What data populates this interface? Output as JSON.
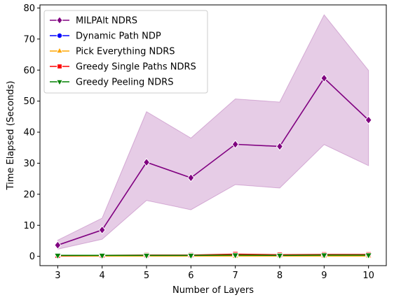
{
  "chart_data": {
    "type": "line",
    "xlabel": "Number of Layers",
    "ylabel": "Time Elapsed (Seconds)",
    "x": [
      3,
      4,
      5,
      6,
      7,
      8,
      9,
      10
    ],
    "xlim": [
      2.6,
      10.4
    ],
    "ylim": [
      -3,
      81
    ],
    "xticks": [
      3,
      4,
      5,
      6,
      7,
      8,
      9,
      10
    ],
    "yticks": [
      0,
      10,
      20,
      30,
      40,
      50,
      60,
      70,
      80
    ],
    "grid": false,
    "legend": "top-left",
    "series": [
      {
        "name": "MILPAlt NDRS",
        "color": "#800080",
        "marker": "diamond",
        "values": [
          3.6,
          8.5,
          30.3,
          25.3,
          36.1,
          35.4,
          57.4,
          43.9
        ],
        "band_low": [
          2.3,
          5.5,
          18.0,
          15.0,
          23.1,
          22.0,
          36.0,
          29.2
        ],
        "band_high": [
          5.2,
          12.3,
          46.6,
          38.1,
          50.7,
          49.7,
          77.8,
          59.9
        ]
      },
      {
        "name": "Dynamic Path NDP",
        "color": "#0000ff",
        "marker": "circle",
        "values": [
          0.2,
          0.2,
          0.2,
          0.2,
          0.3,
          0.3,
          0.3,
          0.3
        ]
      },
      {
        "name": "Pick Everything NDRS",
        "color": "#ffa500",
        "marker": "triangle-up",
        "values": [
          0.1,
          0.1,
          0.1,
          0.1,
          0.1,
          0.1,
          0.1,
          0.1
        ]
      },
      {
        "name": "Greedy Single Paths NDRS",
        "color": "#ff0000",
        "marker": "square",
        "values": [
          0.2,
          0.3,
          0.4,
          0.4,
          0.7,
          0.5,
          0.6,
          0.6
        ]
      },
      {
        "name": "Greedy Peeling NDRS",
        "color": "#008000",
        "marker": "triangle-down",
        "values": [
          0.3,
          0.3,
          0.3,
          0.3,
          0.4,
          0.3,
          0.4,
          0.4
        ]
      }
    ]
  }
}
